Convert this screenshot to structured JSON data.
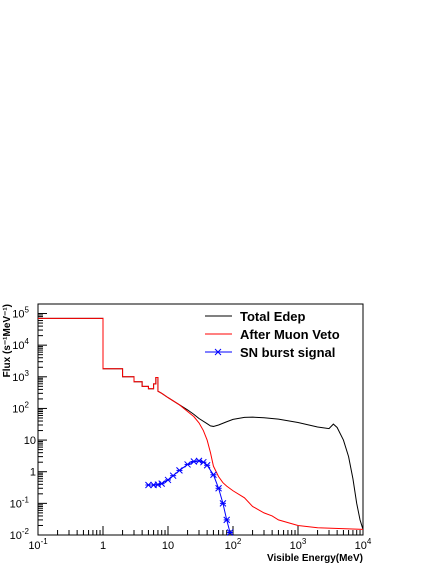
{
  "chart_data": {
    "type": "line",
    "xlabel": "Visible Energy(MeV)",
    "ylabel": "Flux (s⁻¹MeV⁻¹)",
    "x_scale": "log",
    "y_scale": "log",
    "xlim": [
      0.1,
      10000
    ],
    "ylim": [
      0.01,
      200000
    ],
    "x_ticks": [
      {
        "value": 0.1,
        "base": "10",
        "exp": "-1"
      },
      {
        "value": 1,
        "base": "1",
        "exp": ""
      },
      {
        "value": 10,
        "base": "10",
        "exp": ""
      },
      {
        "value": 100,
        "base": "10",
        "exp": "2"
      },
      {
        "value": 1000,
        "base": "10",
        "exp": "3"
      },
      {
        "value": 10000,
        "base": "10",
        "exp": "4"
      }
    ],
    "y_ticks": [
      {
        "value": 0.01,
        "base": "10",
        "exp": "-2"
      },
      {
        "value": 0.1,
        "base": "10",
        "exp": "-1"
      },
      {
        "value": 1,
        "base": "1",
        "exp": ""
      },
      {
        "value": 10,
        "base": "10",
        "exp": ""
      },
      {
        "value": 100,
        "base": "10",
        "exp": "2"
      },
      {
        "value": 1000,
        "base": "10",
        "exp": "3"
      },
      {
        "value": 10000,
        "base": "10",
        "exp": "4"
      },
      {
        "value": 100000,
        "base": "10",
        "exp": "5"
      }
    ],
    "legend_position": "top-right",
    "series": [
      {
        "name": "Total Edep",
        "color": "#000000",
        "style": "step",
        "points": [
          [
            0.1,
            70000
          ],
          [
            1,
            70000
          ],
          [
            1,
            1800
          ],
          [
            2,
            1800
          ],
          [
            2,
            1000
          ],
          [
            3,
            1000
          ],
          [
            3,
            700
          ],
          [
            4,
            700
          ],
          [
            4,
            500
          ],
          [
            5,
            500
          ],
          [
            5,
            420
          ],
          [
            6,
            420
          ],
          [
            6,
            600
          ],
          [
            6.5,
            600
          ],
          [
            6.5,
            950
          ],
          [
            7,
            950
          ],
          [
            7,
            350
          ],
          [
            8,
            300
          ],
          [
            10,
            220
          ],
          [
            15,
            130
          ],
          [
            20,
            90
          ],
          [
            25,
            65
          ],
          [
            30,
            48
          ],
          [
            40,
            33
          ],
          [
            45,
            28
          ],
          [
            50,
            27
          ],
          [
            60,
            30
          ],
          [
            80,
            38
          ],
          [
            100,
            45
          ],
          [
            150,
            52
          ],
          [
            200,
            53
          ],
          [
            300,
            51
          ],
          [
            500,
            46
          ],
          [
            1000,
            36
          ],
          [
            2000,
            26
          ],
          [
            3000,
            23
          ],
          [
            3500,
            32
          ],
          [
            4000,
            25
          ],
          [
            5000,
            10
          ],
          [
            6000,
            3
          ],
          [
            7000,
            0.6
          ],
          [
            8000,
            0.1
          ],
          [
            9000,
            0.03
          ],
          [
            10000,
            0.015
          ]
        ]
      },
      {
        "name": "After Muon Veto",
        "color": "#ff0000",
        "style": "step",
        "points": [
          [
            0.1,
            70000
          ],
          [
            1,
            70000
          ],
          [
            1,
            1800
          ],
          [
            2,
            1800
          ],
          [
            2,
            1000
          ],
          [
            3,
            1000
          ],
          [
            3,
            700
          ],
          [
            4,
            700
          ],
          [
            4,
            500
          ],
          [
            5,
            500
          ],
          [
            5,
            420
          ],
          [
            6,
            420
          ],
          [
            6,
            600
          ],
          [
            6.5,
            600
          ],
          [
            6.5,
            950
          ],
          [
            7,
            950
          ],
          [
            7,
            350
          ],
          [
            8,
            300
          ],
          [
            10,
            220
          ],
          [
            15,
            130
          ],
          [
            20,
            80
          ],
          [
            25,
            55
          ],
          [
            30,
            35
          ],
          [
            35,
            20
          ],
          [
            40,
            10
          ],
          [
            45,
            4
          ],
          [
            50,
            1.5
          ],
          [
            60,
            0.7
          ],
          [
            70,
            0.45
          ],
          [
            80,
            0.35
          ],
          [
            100,
            0.25
          ],
          [
            150,
            0.15
          ],
          [
            200,
            0.08
          ],
          [
            300,
            0.05
          ],
          [
            400,
            0.04
          ],
          [
            500,
            0.03
          ],
          [
            1000,
            0.02
          ],
          [
            2000,
            0.017
          ],
          [
            10000,
            0.015
          ]
        ]
      },
      {
        "name": "SN burst signal",
        "color": "#0000ff",
        "style": "line-markers",
        "points": [
          [
            5,
            0.38
          ],
          [
            6,
            0.38
          ],
          [
            7,
            0.39
          ],
          [
            8,
            0.42
          ],
          [
            10,
            0.55
          ],
          [
            12,
            0.75
          ],
          [
            15,
            1.1
          ],
          [
            20,
            1.7
          ],
          [
            25,
            2.1
          ],
          [
            30,
            2.2
          ],
          [
            35,
            2.0
          ],
          [
            40,
            1.6
          ],
          [
            50,
            0.8
          ],
          [
            60,
            0.3
          ],
          [
            70,
            0.1
          ],
          [
            80,
            0.03
          ],
          [
            90,
            0.012
          ]
        ]
      }
    ]
  }
}
